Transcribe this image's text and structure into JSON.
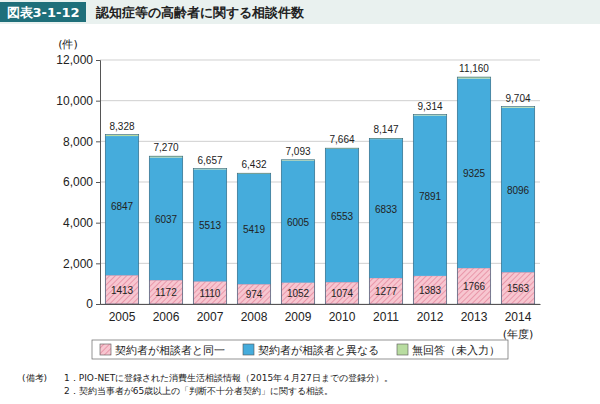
{
  "chart_data": {
    "type": "bar",
    "stacked": true,
    "figure_number": "図表3-1-12",
    "title": "認知症等の高齢者に関する相談件数",
    "y_label": "(件)",
    "x_label": "(年度)",
    "categories": [
      "2005",
      "2006",
      "2007",
      "2008",
      "2009",
      "2010",
      "2011",
      "2012",
      "2013",
      "2014"
    ],
    "series": [
      {
        "name": "契約者が相談者と同一",
        "color": "#f7c6d0",
        "data_labels": true,
        "values": [
          1413,
          1172,
          1110,
          974,
          1052,
          1074,
          1277,
          1383,
          1766,
          1563
        ]
      },
      {
        "name": "契約者が相談者と異なる",
        "color": "#45acdc",
        "data_labels": true,
        "values": [
          6847,
          6037,
          5513,
          5419,
          6005,
          6553,
          6833,
          7891,
          9325,
          8096
        ]
      },
      {
        "name": "無回答（未入力）",
        "color": "#b8dca0",
        "data_labels": false,
        "values": [
          68,
          61,
          34,
          39,
          36,
          37,
          37,
          40,
          69,
          45
        ]
      }
    ],
    "totals": [
      8328,
      7270,
      6657,
      6432,
      7093,
      7664,
      8147,
      9314,
      11160,
      9704
    ],
    "total_labels": [
      "8,328",
      "7,270",
      "6,657",
      "6,432",
      "7,093",
      "7,664",
      "8,147",
      "9,314",
      "11,160",
      "9,704"
    ],
    "ylim": [
      0,
      12000
    ],
    "yticks": [
      {
        "value": 0,
        "label": "0"
      },
      {
        "value": 2000,
        "label": "2,000"
      },
      {
        "value": 4000,
        "label": "4,000"
      },
      {
        "value": 6000,
        "label": "6,000"
      },
      {
        "value": 8000,
        "label": "8,000"
      },
      {
        "value": 10000,
        "label": "10,000"
      },
      {
        "value": 12000,
        "label": "12,000"
      }
    ],
    "grid": true,
    "legend": "bottom",
    "notes_label": "(備考)",
    "notes": [
      "1．PIO-NETに登録された消費生活相談情報（2015年４月27日までの登録分）。",
      "2．契約当事者が65歳以上の「判断不十分者契約」に関する相談。"
    ]
  }
}
